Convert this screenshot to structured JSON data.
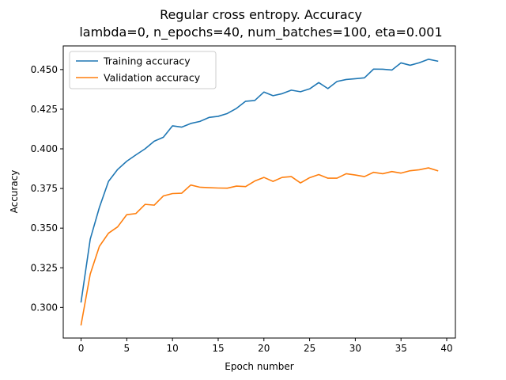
{
  "chart_data": {
    "type": "line",
    "title": "Regular cross entropy. Accuracy",
    "subtitle": "lambda=0, n_epochs=40, num_batches=100, eta=0.001",
    "xlabel": "Epoch number",
    "ylabel": "Accuracy",
    "xlim": [
      -1.95,
      40.95
    ],
    "ylim": [
      0.2807,
      0.4649
    ],
    "xticks": [
      0,
      5,
      10,
      15,
      20,
      25,
      30,
      35,
      40
    ],
    "yticks": [
      0.3,
      0.325,
      0.35,
      0.375,
      0.4,
      0.425,
      0.45
    ],
    "ytick_labels": [
      "0.300",
      "0.325",
      "0.350",
      "0.375",
      "0.400",
      "0.425",
      "0.450"
    ],
    "grid": false,
    "legend_position": "upper-left",
    "x": [
      0,
      1,
      2,
      3,
      4,
      5,
      6,
      7,
      8,
      9,
      10,
      11,
      12,
      13,
      14,
      15,
      16,
      17,
      18,
      19,
      20,
      21,
      22,
      23,
      24,
      25,
      26,
      27,
      28,
      29,
      30,
      31,
      32,
      33,
      34,
      35,
      36,
      37,
      38,
      39
    ],
    "series": [
      {
        "name": "Training accuracy",
        "color": "#1f77b4",
        "values": [
          0.3035,
          0.343,
          0.363,
          0.3795,
          0.387,
          0.3922,
          0.3962,
          0.4,
          0.4048,
          0.4073,
          0.4145,
          0.4137,
          0.416,
          0.4173,
          0.4198,
          0.4205,
          0.4223,
          0.4255,
          0.43,
          0.4305,
          0.4358,
          0.4335,
          0.4348,
          0.437,
          0.436,
          0.4378,
          0.4418,
          0.438,
          0.4425,
          0.4437,
          0.4442,
          0.4448,
          0.4503,
          0.4502,
          0.4497,
          0.4542,
          0.4527,
          0.4543,
          0.4565,
          0.4553
        ]
      },
      {
        "name": "Validation accuracy",
        "color": "#ff7f0e",
        "values": [
          0.289,
          0.321,
          0.3385,
          0.3468,
          0.3508,
          0.3585,
          0.3592,
          0.365,
          0.3645,
          0.3703,
          0.3718,
          0.372,
          0.3772,
          0.3758,
          0.3755,
          0.3753,
          0.3752,
          0.3765,
          0.3762,
          0.3797,
          0.382,
          0.3795,
          0.382,
          0.3825,
          0.3785,
          0.3818,
          0.3838,
          0.3815,
          0.3815,
          0.3843,
          0.3835,
          0.3825,
          0.3852,
          0.3843,
          0.3857,
          0.3847,
          0.3862,
          0.3868,
          0.388,
          0.3862
        ]
      }
    ]
  }
}
